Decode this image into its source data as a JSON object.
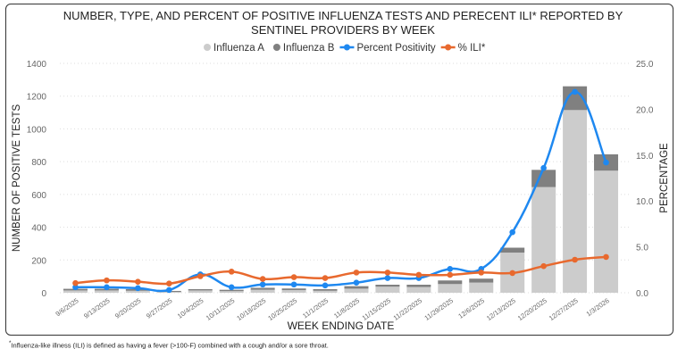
{
  "chart_data": {
    "type": "bar+line",
    "title": "NUMBER, TYPE, AND PERCENT OF POSITIVE INFLUENZA TESTS AND PERECENT ILI* REPORTED BY SENTINEL PROVIDERS BY WEEK",
    "xlabel": "WEEK ENDING DATE",
    "ylabel": "NUMBER OF POSITIVE TESTS",
    "y2label": "PERCENTAGE",
    "ylim": [
      0,
      1400
    ],
    "yticks": [
      "0",
      "200",
      "400",
      "600",
      "800",
      "1000",
      "1200",
      "1400"
    ],
    "y2lim": [
      0,
      25
    ],
    "y2ticks": [
      "0.0",
      "5.0",
      "10.0",
      "15.0",
      "20.0",
      "25.0"
    ],
    "grid": true,
    "legend_position": "top",
    "categories": [
      "9/6/2025",
      "9/13/2025",
      "9/20/2025",
      "9/27/2025",
      "10/4/2025",
      "10/11/2025",
      "10/18/2025",
      "10/25/2025",
      "11/1/2025",
      "11/8/2025",
      "11/15/2025",
      "11/22/2025",
      "11/29/2025",
      "12/6/2025",
      "12/13/2025",
      "12/20/2025",
      "12/27/2025",
      "1/3/2026"
    ],
    "series": [
      {
        "name": "Influenza A",
        "type": "bar",
        "axis": "left",
        "color": "#cccccc",
        "values": [
          14,
          14,
          12,
          5,
          14,
          10,
          18,
          16,
          12,
          25,
          37,
          35,
          53,
          62,
          245,
          645,
          1115,
          745
        ]
      },
      {
        "name": "Influenza B",
        "type": "bar",
        "axis": "left",
        "color": "#808080",
        "values": [
          10,
          10,
          10,
          6,
          8,
          8,
          12,
          10,
          10,
          15,
          12,
          14,
          22,
          24,
          30,
          105,
          145,
          100
        ]
      },
      {
        "name": "Percent Positivity",
        "type": "line",
        "axis": "right",
        "color": "#1e88f0",
        "values": [
          0.6,
          0.6,
          0.5,
          0.3,
          2.0,
          0.6,
          0.9,
          0.9,
          0.8,
          1.1,
          1.6,
          1.6,
          2.6,
          2.6,
          6.6,
          13.6,
          21.9,
          14.2
        ]
      },
      {
        "name": "% ILI*",
        "type": "line",
        "axis": "right",
        "color": "#e8692e",
        "values": [
          1.05,
          1.35,
          1.2,
          1.0,
          1.8,
          2.3,
          1.5,
          1.7,
          1.6,
          2.2,
          2.2,
          1.95,
          1.95,
          2.2,
          2.15,
          2.9,
          3.6,
          3.9
        ]
      }
    ]
  },
  "footnote_mark": "*",
  "footnote": "Influenza-like illness (ILI) is defined as having a fever (>100-F) combined with a cough and/or a sore throat."
}
